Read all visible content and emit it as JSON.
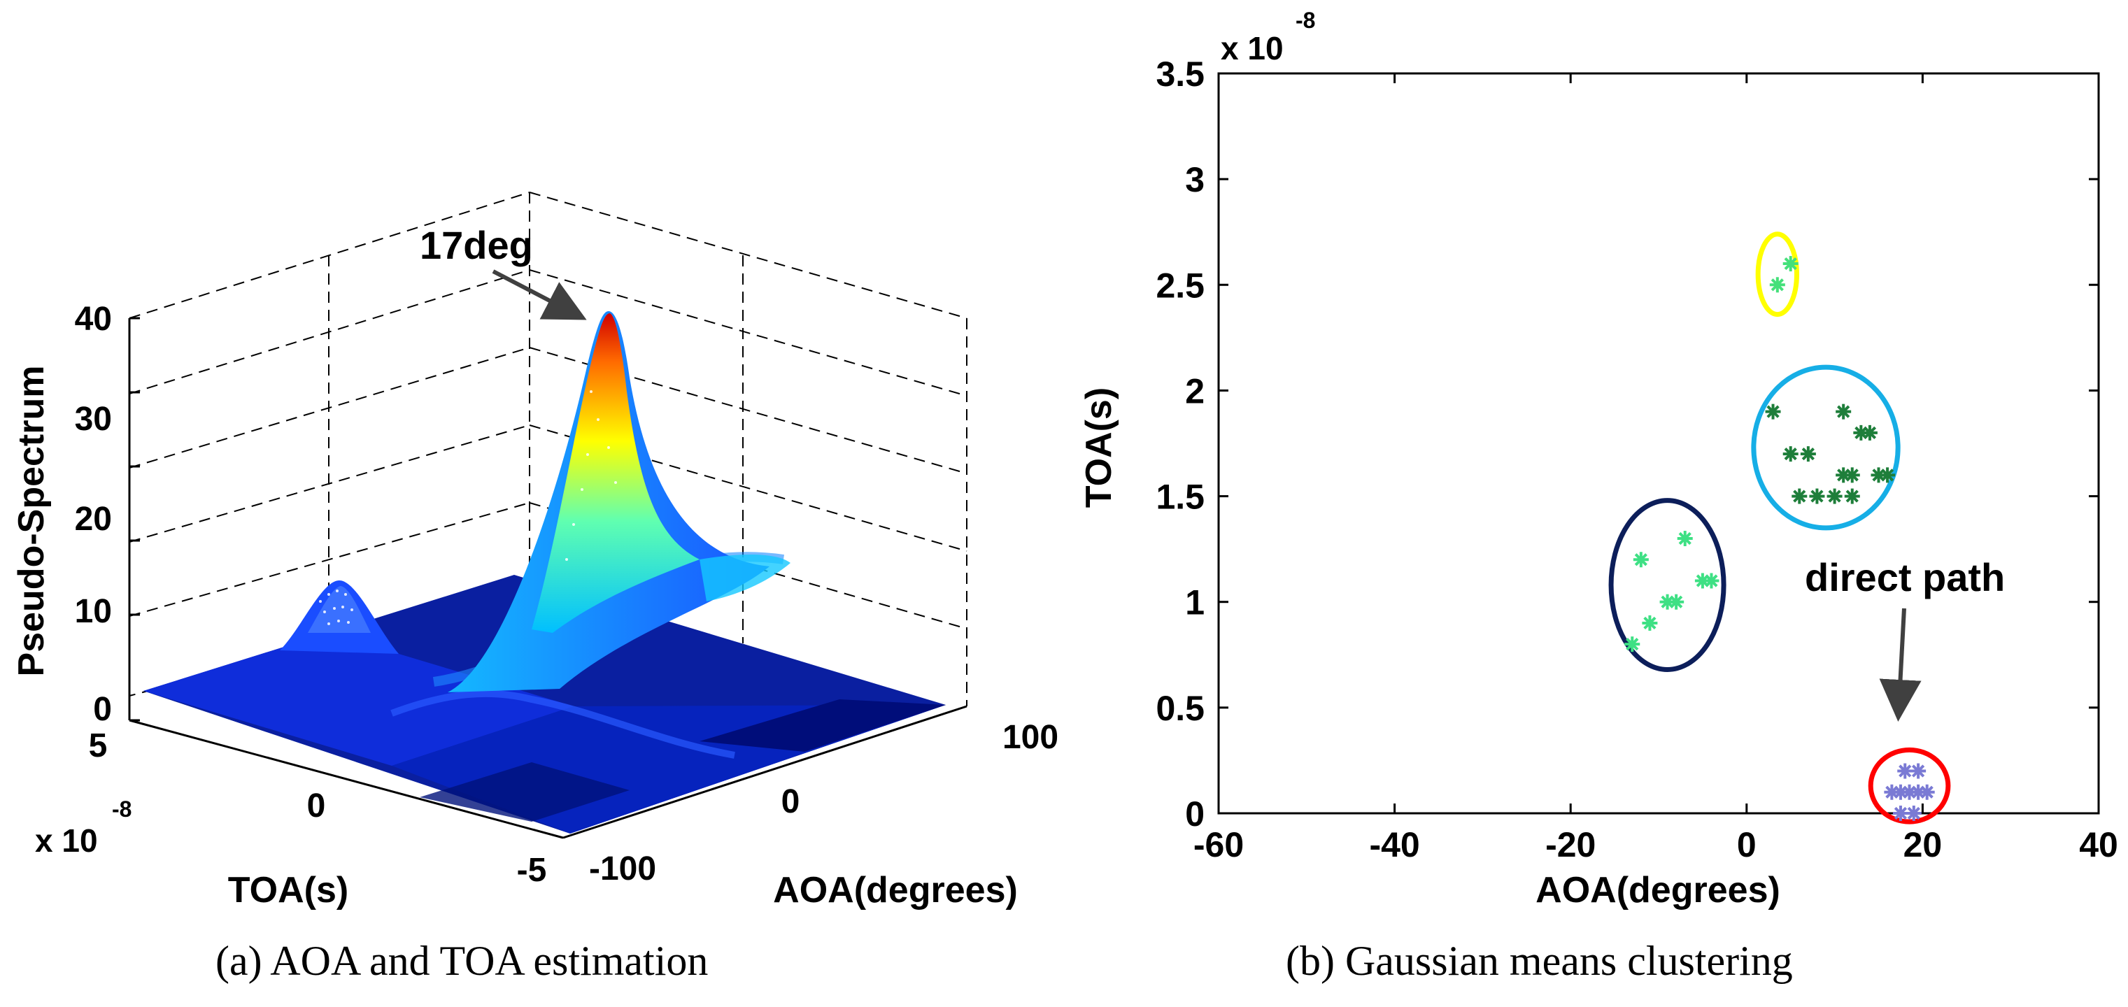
{
  "captions": {
    "a": "(a)  AOA and TOA estimation",
    "b": "(b)  Gaussian means clustering"
  },
  "chart_data": [
    {
      "id": "a",
      "type": "surface",
      "title": "",
      "zlabel": "Pseudo-Spectrum",
      "xlabel": "TOA(s)",
      "ylabel": "AOA(degrees)",
      "x_exponent": "x 10",
      "x_exponent_power": "-8",
      "z_ticks": [
        "0",
        "10",
        "20",
        "30",
        "40"
      ],
      "x_ticks": [
        "5",
        "0",
        "-5"
      ],
      "y_ticks": [
        "-100",
        "0",
        "100"
      ],
      "zlim": [
        0,
        40
      ],
      "xlim": [
        -5e-08,
        5e-08
      ],
      "ylim": [
        -100,
        100
      ],
      "colormap": [
        "#00008f",
        "#0000ff",
        "#00ffff",
        "#ffff00",
        "#ff0000",
        "#800000"
      ],
      "peaks": [
        {
          "aoa": 17,
          "toa": 2e-09,
          "value": 40,
          "label": "17deg"
        },
        {
          "aoa": -80,
          "toa": 4e-08,
          "value": 13
        }
      ],
      "annotation": "17deg"
    },
    {
      "id": "b",
      "type": "scatter",
      "xlabel": "AOA(degrees)",
      "ylabel": "TOA(s)",
      "y_exponent": "x 10",
      "y_exponent_power": "-8",
      "xlim": [
        -60,
        40
      ],
      "ylim": [
        0,
        3.5
      ],
      "x_ticks": [
        "-60",
        "-40",
        "-20",
        "0",
        "20",
        "40"
      ],
      "x_tick_values": [
        -60,
        -40,
        -20,
        0,
        20,
        40
      ],
      "y_ticks": [
        "0",
        "0.5",
        "1",
        "1.5",
        "2",
        "2.5",
        "3",
        "3.5"
      ],
      "y_tick_values": [
        0,
        0.5,
        1,
        1.5,
        2,
        2.5,
        3,
        3.5
      ],
      "annotation": "direct path",
      "clusters": [
        {
          "name": "cluster-yellow",
          "color": "#44e07a",
          "ring_color": "#ffff00",
          "center": [
            3.5,
            2.55
          ],
          "radius": [
            2.2,
            0.19
          ],
          "points": [
            [
              3.5,
              2.5
            ],
            [
              5,
              2.6
            ]
          ]
        },
        {
          "name": "cluster-cyan",
          "color": "#1e7e3a",
          "ring_color": "#16aee6",
          "center": [
            9,
            1.73
          ],
          "radius": [
            8.2,
            0.38
          ],
          "points": [
            [
              3,
              1.9
            ],
            [
              11,
              1.9
            ],
            [
              5,
              1.7
            ],
            [
              7,
              1.7
            ],
            [
              13,
              1.8
            ],
            [
              14,
              1.8
            ],
            [
              11,
              1.6
            ],
            [
              12,
              1.6
            ],
            [
              15,
              1.6
            ],
            [
              16,
              1.6
            ],
            [
              6,
              1.5
            ],
            [
              8,
              1.5
            ],
            [
              10,
              1.5
            ],
            [
              12,
              1.5
            ]
          ]
        },
        {
          "name": "cluster-navy",
          "color": "#3ee084",
          "ring_color": "#0c1e5a",
          "center": [
            -9,
            1.08
          ],
          "radius": [
            6.4,
            0.4
          ],
          "points": [
            [
              -12,
              1.2
            ],
            [
              -7,
              1.3
            ],
            [
              -9,
              1.0
            ],
            [
              -8,
              1.0
            ],
            [
              -5,
              1.1
            ],
            [
              -4,
              1.1
            ],
            [
              -11,
              0.9
            ],
            [
              -13,
              0.8
            ]
          ]
        },
        {
          "name": "cluster-red",
          "color": "#7a7ad4",
          "ring_color": "#ff0000",
          "center": [
            18.5,
            0.13
          ],
          "radius": [
            4.4,
            0.17
          ],
          "points": [
            [
              18,
              0.2
            ],
            [
              19.5,
              0.2
            ],
            [
              16.5,
              0.1
            ],
            [
              17.5,
              0.1
            ],
            [
              18.5,
              0.1
            ],
            [
              19.5,
              0.1
            ],
            [
              20.5,
              0.1
            ],
            [
              17.5,
              0.0
            ],
            [
              19,
              0.0
            ]
          ]
        }
      ]
    }
  ]
}
